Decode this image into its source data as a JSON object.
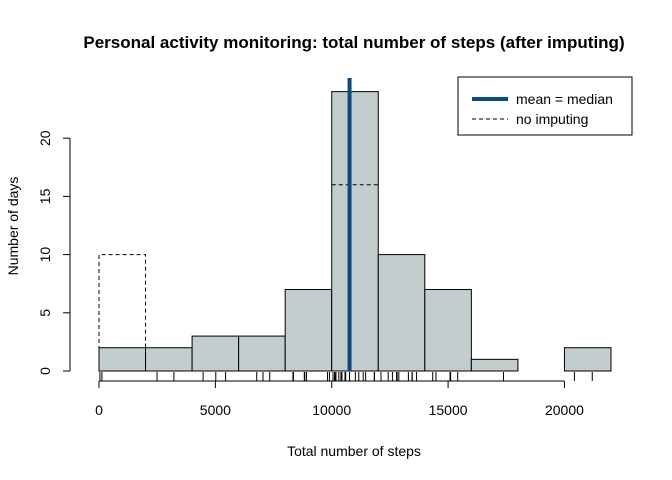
{
  "chart_data": {
    "type": "bar",
    "title": "Personal activity monitoring: total number of steps (after imputing)",
    "xlabel": "Total number of steps",
    "ylabel": "Number of days",
    "xlim": [
      0,
      22000
    ],
    "ylim": [
      0,
      25
    ],
    "x_ticks": [
      0,
      5000,
      10000,
      15000,
      20000
    ],
    "y_ticks": [
      0,
      5,
      10,
      15,
      20
    ],
    "bin_edges": [
      0,
      2000,
      4000,
      6000,
      8000,
      10000,
      12000,
      14000,
      16000,
      18000,
      20000,
      22000
    ],
    "series": [
      {
        "name": "after imputing",
        "values": [
          2,
          2,
          3,
          3,
          7,
          24,
          10,
          7,
          1,
          0,
          2
        ],
        "color": "#c2cecd"
      },
      {
        "name": "no imputing",
        "values": [
          10,
          2,
          3,
          3,
          7,
          16,
          10,
          7,
          1,
          0,
          2
        ],
        "style": "dashed"
      }
    ],
    "mean_median_line": {
      "value": 10766,
      "color": "#0b4a7e"
    },
    "rug": [
      41,
      126,
      2492,
      3219,
      4472,
      5018,
      5441,
      6778,
      7047,
      7336,
      8334,
      8355,
      8821,
      8841,
      8918,
      9819,
      9900,
      10056,
      10119,
      10139,
      10183,
      10304,
      10395,
      10439,
      10571,
      10600,
      10765,
      10766,
      11015,
      11162,
      11352,
      11458,
      11829,
      11834,
      12116,
      12426,
      12608,
      12787,
      12811,
      12883,
      13294,
      13452,
      13460,
      13646,
      14339,
      14478,
      15084,
      15098,
      15110,
      15414,
      17382,
      20427,
      21194
    ],
    "legend": {
      "position": "top-right",
      "items": [
        {
          "label": "mean = median",
          "style": "solid-thick",
          "color": "#0b4a7e"
        },
        {
          "label": "no imputing",
          "style": "dashed",
          "color": "#000000"
        }
      ]
    }
  }
}
